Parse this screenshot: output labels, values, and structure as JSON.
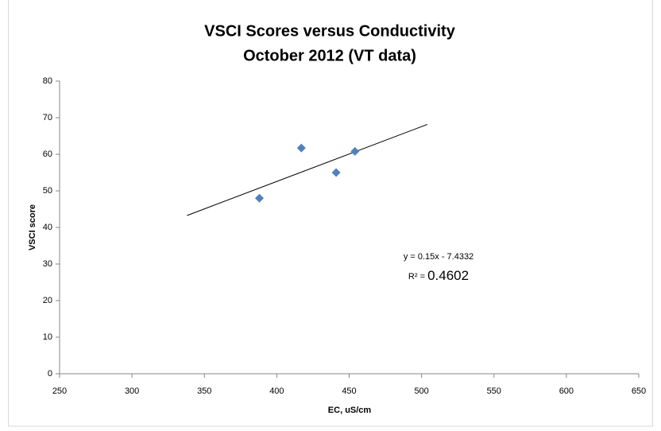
{
  "chart_data": {
    "type": "scatter",
    "title": "VSCI Scores versus Conductivity",
    "subtitle": "October 2012 (VT data)",
    "x_label": "EC, uS/cm",
    "y_label": "VSCI score",
    "series": [
      {
        "name": "VSCI",
        "color": "#4f81bd",
        "x": [
          388,
          417,
          441,
          454
        ],
        "values": [
          48,
          61.7,
          55,
          60.8
        ]
      }
    ],
    "xlim": [
      250,
      650
    ],
    "xticks": [
      250,
      300,
      350,
      400,
      450,
      500,
      550,
      600,
      650
    ],
    "ylim": [
      0,
      80
    ],
    "yticks": [
      0,
      10,
      20,
      30,
      40,
      50,
      60,
      70,
      80
    ],
    "grid": false,
    "trendline": {
      "slope": 0.15,
      "intercept": -7.4332,
      "x_range": [
        338,
        504
      ],
      "equation": "y = 0.15x - 7.4332",
      "r_squared_label": "R² = ",
      "r_squared": 0.4602
    }
  }
}
